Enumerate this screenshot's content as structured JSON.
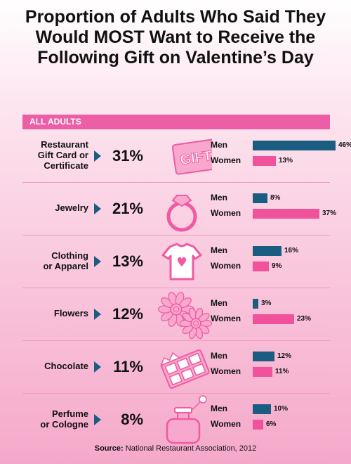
{
  "title": "Proportion of Adults Who Said They Would MOST Want to Receive the Following Gift on Valentine’s Day",
  "banner": "ALL ADULTS",
  "source_label": "Source:",
  "source_text": " National Restaurant Association, 2012",
  "chart_data": {
    "type": "bar",
    "title": "Proportion of Adults Who Said They Would MOST Want to Receive the Following Gift on Valentine’s Day",
    "categories": [
      "Restaurant Gift Card or Certificate",
      "Jewelry",
      "Clothing or Apparel",
      "Flowers",
      "Chocolate",
      "Perfume or Cologne"
    ],
    "category_lines": [
      [
        "Restaurant",
        "Gift Card or",
        "Certificate"
      ],
      [
        "Jewelry"
      ],
      [
        "Clothing",
        "or Apparel"
      ],
      [
        "Flowers"
      ],
      [
        "Chocolate"
      ],
      [
        "Perfume",
        "or Cologne"
      ]
    ],
    "all_adults_labels": [
      "31%",
      "21%",
      "13%",
      "12%",
      "11%",
      "8%"
    ],
    "all_adults": [
      31,
      21,
      13,
      12,
      11,
      8
    ],
    "series": [
      {
        "name": "Men",
        "values": [
          46,
          8,
          16,
          3,
          12,
          10
        ],
        "labels": [
          "46%",
          "8%",
          "16%",
          "3%",
          "12%",
          "10%"
        ],
        "color": "#1b5d80"
      },
      {
        "name": "Women",
        "values": [
          13,
          37,
          9,
          23,
          11,
          6
        ],
        "labels": [
          "13%",
          "37%",
          "9%",
          "23%",
          "11%",
          "6%"
        ],
        "color": "#f0529b"
      }
    ],
    "icons": [
      "gift-card-icon",
      "ring-icon",
      "tshirt-icon",
      "flowers-icon",
      "chocolate-bar-icon",
      "perfume-bottle-icon"
    ],
    "icon_text": [
      "GIFT"
    ],
    "xlim": [
      0,
      46
    ]
  }
}
